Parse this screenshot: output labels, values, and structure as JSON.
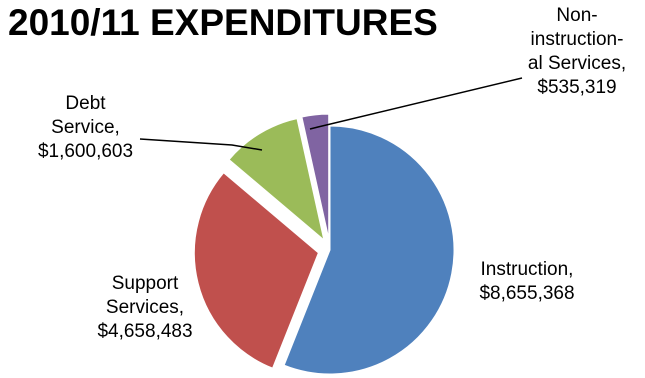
{
  "chart_data": {
    "type": "pie",
    "title": "2010/11 EXPENDITURES",
    "series": [
      {
        "name": "",
        "slices": [
          {
            "label": [
              "Instruction,",
              "$8,655,368"
            ],
            "value": 8655368,
            "color": "#4f81bd"
          },
          {
            "label": [
              "Support",
              "Services,",
              "$4,658,483"
            ],
            "value": 4658483,
            "color": "#c0504d"
          },
          {
            "label": [
              "Debt",
              "Service,",
              "$1,600,603"
            ],
            "value": 1600603,
            "color": "#9bbb59"
          },
          {
            "label": [
              "Non-",
              "instruction-",
              "al Services,",
              "$535,319"
            ],
            "value": 535319,
            "color": "#8064a2"
          }
        ]
      }
    ],
    "legend": "none"
  }
}
